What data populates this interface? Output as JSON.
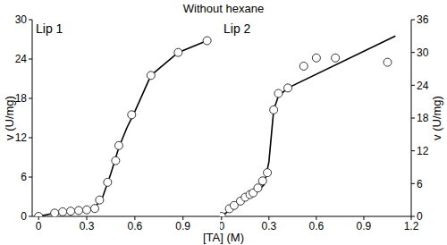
{
  "title": "Without hexane",
  "x_label": "[TA] (M)",
  "chart_data": [
    {
      "type": "scatter",
      "title": "Lip 1",
      "y_label": "v (U/mg)",
      "xlim": [
        -0.04,
        1.13
      ],
      "xticks": [
        0,
        0.3,
        0.6,
        0.9
      ],
      "ylim": [
        0,
        30
      ],
      "yticks": [
        0,
        6,
        12,
        18,
        24,
        30
      ],
      "series": [
        {
          "type": "line",
          "color": "#000000",
          "line_style": "solid",
          "x": [
            0,
            0.1,
            0.2,
            0.3,
            0.35,
            0.4,
            0.45,
            0.5,
            0.55,
            0.6,
            0.7,
            0.87,
            1.05
          ],
          "values": [
            0,
            0.5,
            0.8,
            1.0,
            1.3,
            3,
            6.5,
            10.5,
            13.5,
            16,
            21.5,
            25,
            26.8
          ]
        },
        {
          "type": "scatter",
          "color": "#333333",
          "marker": "circle",
          "x": [
            0,
            0.1,
            0.15,
            0.2,
            0.25,
            0.3,
            0.35,
            0.38,
            0.43,
            0.48,
            0.5,
            0.58,
            0.7,
            0.87,
            1.05
          ],
          "values": [
            0,
            0.5,
            0.7,
            0.8,
            0.9,
            1.0,
            1.2,
            2.5,
            5.2,
            8.5,
            10.8,
            15.5,
            21.5,
            25,
            26.8
          ]
        }
      ]
    },
    {
      "type": "scatter",
      "title": "Lip 2",
      "y_label": "v (U/mg)",
      "xlim": [
        -0.01,
        1.2
      ],
      "xticks": [
        0,
        0.3,
        0.6,
        0.9,
        1.2
      ],
      "ylim": [
        0,
        36
      ],
      "yticks": [
        0,
        6,
        12,
        18,
        24,
        30,
        36
      ],
      "series": [
        {
          "type": "line",
          "color": "#000000",
          "line_style": "solid",
          "x": [
            0,
            0.1,
            0.2,
            0.27,
            0.3,
            0.33,
            0.36,
            0.42,
            1.1
          ],
          "values": [
            0,
            2.2,
            4,
            5.8,
            10,
            19.5,
            22,
            23.5,
            33
          ]
        },
        {
          "type": "scatter",
          "color": "#333333",
          "marker": "circle",
          "x": [
            0,
            0.05,
            0.08,
            0.12,
            0.15,
            0.18,
            0.2,
            0.23,
            0.26,
            0.29,
            0.33,
            0.36,
            0.42,
            0.52,
            0.6,
            0.72,
            1.05
          ],
          "values": [
            0,
            1.4,
            2.0,
            2.8,
            3.5,
            4.0,
            4.3,
            5.2,
            6.5,
            8.0,
            19.5,
            22.5,
            23.5,
            27.5,
            29,
            29,
            28.2
          ]
        }
      ]
    }
  ]
}
